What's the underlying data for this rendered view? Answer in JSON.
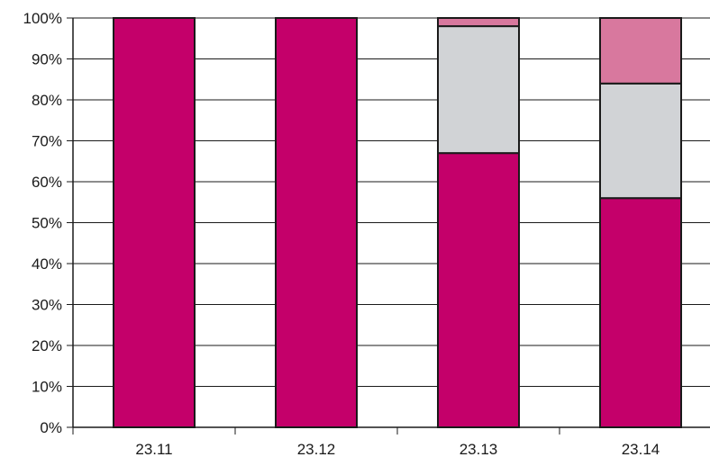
{
  "chart_data": {
    "type": "bar",
    "stacked": true,
    "categories": [
      "23.11",
      "23.12",
      "23.13",
      "23.14"
    ],
    "series": [
      {
        "values": [
          100,
          100,
          67,
          56
        ],
        "color": "#c4006a"
      },
      {
        "values": [
          0,
          0,
          31,
          28
        ],
        "color": "#d1d3d6"
      },
      {
        "values": [
          0,
          0,
          2,
          16
        ],
        "color": "#d8789e"
      }
    ],
    "ylim": [
      0,
      100
    ],
    "y_ticks": [
      "0%",
      "10%",
      "20%",
      "30%",
      "40%",
      "50%",
      "60%",
      "70%",
      "80%",
      "90%",
      "100%"
    ],
    "grid": true,
    "legend": "none"
  }
}
